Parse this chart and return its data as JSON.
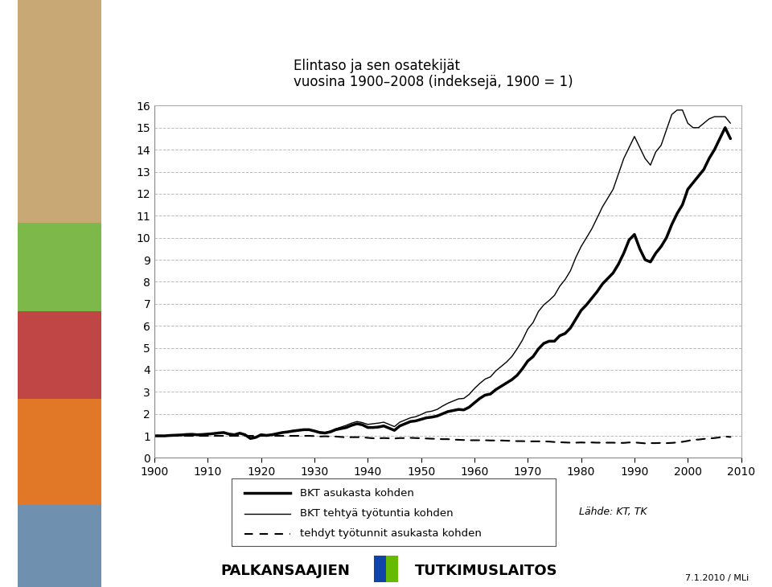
{
  "title_line1": "Elintaso ja sen osatekijät",
  "title_line2": "vuosina 1900–2008 (indeksejä, 1900 = 1)",
  "xlim": [
    1900,
    2010
  ],
  "ylim": [
    0,
    16
  ],
  "yticks": [
    0,
    1,
    2,
    3,
    4,
    5,
    6,
    7,
    8,
    9,
    10,
    11,
    12,
    13,
    14,
    15,
    16
  ],
  "xticks": [
    1900,
    1910,
    1920,
    1930,
    1940,
    1950,
    1960,
    1970,
    1980,
    1990,
    2000,
    2010
  ],
  "background_color": "#ffffff",
  "plot_bg": "#ffffff",
  "grid_color": "#bbbbbb",
  "legend_label1": "BKT asukasta kohden",
  "legend_label2": "BKT tehtyä työtuntia kohden",
  "legend_label3": "tehdyt työtunnit asukasta kohden",
  "source_text": "Lähde: KT, TK",
  "date_text": "7.1.2010 / MLi",
  "left_bars": [
    {
      "color": "#c8a875",
      "bottom": 0.62,
      "height": 0.38
    },
    {
      "color": "#7db84a",
      "bottom": 0.47,
      "height": 0.15
    },
    {
      "color": "#c04545",
      "bottom": 0.32,
      "height": 0.15
    },
    {
      "color": "#e07828",
      "bottom": 0.14,
      "height": 0.18
    },
    {
      "color": "#7090b0",
      "bottom": 0.0,
      "height": 0.14
    }
  ],
  "bkt_asukasta": {
    "years": [
      1900,
      1901,
      1902,
      1903,
      1904,
      1905,
      1906,
      1907,
      1908,
      1909,
      1910,
      1911,
      1912,
      1913,
      1914,
      1915,
      1916,
      1917,
      1918,
      1919,
      1920,
      1921,
      1922,
      1923,
      1924,
      1925,
      1926,
      1927,
      1928,
      1929,
      1930,
      1931,
      1932,
      1933,
      1934,
      1935,
      1936,
      1937,
      1938,
      1939,
      1940,
      1941,
      1942,
      1943,
      1944,
      1945,
      1946,
      1947,
      1948,
      1949,
      1950,
      1951,
      1952,
      1953,
      1954,
      1955,
      1956,
      1957,
      1958,
      1959,
      1960,
      1961,
      1962,
      1963,
      1964,
      1965,
      1966,
      1967,
      1968,
      1969,
      1970,
      1971,
      1972,
      1973,
      1974,
      1975,
      1976,
      1977,
      1978,
      1979,
      1980,
      1981,
      1982,
      1983,
      1984,
      1985,
      1986,
      1987,
      1988,
      1989,
      1990,
      1991,
      1992,
      1993,
      1994,
      1995,
      1996,
      1997,
      1998,
      1999,
      2000,
      2001,
      2002,
      2003,
      2004,
      2005,
      2006,
      2007,
      2008
    ],
    "values": [
      1.0,
      1.0,
      1.0,
      1.02,
      1.03,
      1.04,
      1.06,
      1.07,
      1.05,
      1.06,
      1.08,
      1.1,
      1.13,
      1.15,
      1.08,
      1.05,
      1.12,
      1.05,
      0.88,
      0.93,
      1.05,
      1.02,
      1.05,
      1.1,
      1.15,
      1.18,
      1.22,
      1.25,
      1.28,
      1.28,
      1.22,
      1.15,
      1.13,
      1.18,
      1.28,
      1.33,
      1.38,
      1.48,
      1.55,
      1.5,
      1.38,
      1.38,
      1.4,
      1.45,
      1.35,
      1.25,
      1.45,
      1.55,
      1.65,
      1.68,
      1.75,
      1.82,
      1.85,
      1.9,
      2.0,
      2.1,
      2.15,
      2.2,
      2.18,
      2.3,
      2.5,
      2.7,
      2.85,
      2.9,
      3.1,
      3.25,
      3.4,
      3.55,
      3.75,
      4.05,
      4.4,
      4.6,
      4.95,
      5.2,
      5.3,
      5.3,
      5.55,
      5.65,
      5.9,
      6.3,
      6.7,
      6.95,
      7.25,
      7.55,
      7.9,
      8.15,
      8.4,
      8.8,
      9.3,
      9.9,
      10.15,
      9.5,
      9.0,
      8.9,
      9.3,
      9.6,
      10.0,
      10.6,
      11.1,
      11.5,
      12.2,
      12.5,
      12.8,
      13.1,
      13.6,
      14.0,
      14.5,
      15.0,
      14.5
    ]
  },
  "bkt_tyotuntia": {
    "years": [
      1900,
      1901,
      1902,
      1903,
      1904,
      1905,
      1906,
      1907,
      1908,
      1909,
      1910,
      1911,
      1912,
      1913,
      1914,
      1915,
      1916,
      1917,
      1918,
      1919,
      1920,
      1921,
      1922,
      1923,
      1924,
      1925,
      1926,
      1927,
      1928,
      1929,
      1930,
      1931,
      1932,
      1933,
      1934,
      1935,
      1936,
      1937,
      1938,
      1939,
      1940,
      1941,
      1942,
      1943,
      1944,
      1945,
      1946,
      1947,
      1948,
      1949,
      1950,
      1951,
      1952,
      1953,
      1954,
      1955,
      1956,
      1957,
      1958,
      1959,
      1960,
      1961,
      1962,
      1963,
      1964,
      1965,
      1966,
      1967,
      1968,
      1969,
      1970,
      1971,
      1972,
      1973,
      1974,
      1975,
      1976,
      1977,
      1978,
      1979,
      1980,
      1981,
      1982,
      1983,
      1984,
      1985,
      1986,
      1987,
      1988,
      1989,
      1990,
      1991,
      1992,
      1993,
      1994,
      1995,
      1996,
      1997,
      1998,
      1999,
      2000,
      2001,
      2002,
      2003,
      2004,
      2005,
      2006,
      2007,
      2008
    ],
    "values": [
      1.0,
      1.0,
      1.0,
      1.02,
      1.03,
      1.04,
      1.06,
      1.07,
      1.05,
      1.06,
      1.08,
      1.1,
      1.13,
      1.15,
      1.08,
      1.05,
      1.12,
      1.05,
      0.88,
      0.93,
      1.05,
      1.02,
      1.05,
      1.1,
      1.15,
      1.18,
      1.22,
      1.25,
      1.28,
      1.28,
      1.23,
      1.18,
      1.15,
      1.22,
      1.32,
      1.4,
      1.48,
      1.58,
      1.65,
      1.6,
      1.52,
      1.55,
      1.58,
      1.62,
      1.52,
      1.42,
      1.62,
      1.72,
      1.82,
      1.87,
      1.97,
      2.08,
      2.12,
      2.2,
      2.35,
      2.48,
      2.58,
      2.68,
      2.7,
      2.88,
      3.15,
      3.38,
      3.58,
      3.68,
      3.95,
      4.15,
      4.35,
      4.6,
      4.95,
      5.35,
      5.85,
      6.15,
      6.65,
      6.95,
      7.15,
      7.38,
      7.8,
      8.1,
      8.5,
      9.1,
      9.6,
      10.0,
      10.4,
      10.9,
      11.4,
      11.8,
      12.2,
      12.9,
      13.6,
      14.1,
      14.6,
      14.1,
      13.6,
      13.3,
      13.9,
      14.2,
      14.9,
      15.6,
      15.8,
      15.8,
      15.2,
      15.0,
      15.0,
      15.2,
      15.4,
      15.5,
      15.5,
      15.5,
      15.2
    ]
  },
  "tyotunnit_asukasta": {
    "years": [
      1900,
      1901,
      1902,
      1903,
      1904,
      1905,
      1906,
      1907,
      1908,
      1909,
      1910,
      1911,
      1912,
      1913,
      1914,
      1915,
      1916,
      1917,
      1918,
      1919,
      1920,
      1921,
      1922,
      1923,
      1924,
      1925,
      1926,
      1927,
      1928,
      1929,
      1930,
      1931,
      1932,
      1933,
      1934,
      1935,
      1936,
      1937,
      1938,
      1939,
      1940,
      1941,
      1942,
      1943,
      1944,
      1945,
      1946,
      1947,
      1948,
      1949,
      1950,
      1951,
      1952,
      1953,
      1954,
      1955,
      1956,
      1957,
      1958,
      1959,
      1960,
      1961,
      1962,
      1963,
      1964,
      1965,
      1966,
      1967,
      1968,
      1969,
      1970,
      1971,
      1972,
      1973,
      1974,
      1975,
      1976,
      1977,
      1978,
      1979,
      1980,
      1981,
      1982,
      1983,
      1984,
      1985,
      1986,
      1987,
      1988,
      1989,
      1990,
      1991,
      1992,
      1993,
      1994,
      1995,
      1996,
      1997,
      1998,
      1999,
      2000,
      2001,
      2002,
      2003,
      2004,
      2005,
      2006,
      2007,
      2008
    ],
    "values": [
      1.0,
      1.0,
      1.0,
      1.0,
      1.0,
      1.0,
      1.0,
      1.0,
      1.0,
      1.0,
      1.0,
      1.0,
      1.0,
      1.0,
      1.0,
      1.0,
      1.0,
      1.0,
      1.0,
      1.0,
      1.0,
      1.0,
      1.0,
      1.0,
      1.0,
      1.0,
      1.0,
      1.0,
      1.0,
      1.0,
      0.99,
      0.97,
      0.98,
      0.97,
      0.97,
      0.95,
      0.93,
      0.94,
      0.94,
      0.94,
      0.91,
      0.89,
      0.89,
      0.9,
      0.89,
      0.88,
      0.9,
      0.9,
      0.91,
      0.9,
      0.89,
      0.88,
      0.87,
      0.86,
      0.85,
      0.85,
      0.83,
      0.82,
      0.81,
      0.8,
      0.8,
      0.8,
      0.8,
      0.79,
      0.79,
      0.79,
      0.78,
      0.77,
      0.76,
      0.76,
      0.75,
      0.75,
      0.75,
      0.75,
      0.74,
      0.72,
      0.71,
      0.7,
      0.69,
      0.69,
      0.7,
      0.69,
      0.7,
      0.69,
      0.69,
      0.69,
      0.69,
      0.68,
      0.68,
      0.7,
      0.7,
      0.68,
      0.66,
      0.67,
      0.67,
      0.68,
      0.67,
      0.68,
      0.7,
      0.73,
      0.77,
      0.83,
      0.83,
      0.86,
      0.88,
      0.9,
      0.93,
      0.97,
      0.95
    ]
  },
  "logo_colors": [
    "#1144aa",
    "#66bb00"
  ],
  "footer_org1": "PALKANSAAJIEN",
  "footer_logo_char": "║",
  "footer_org2": "TUTKIMUSLAITOS"
}
